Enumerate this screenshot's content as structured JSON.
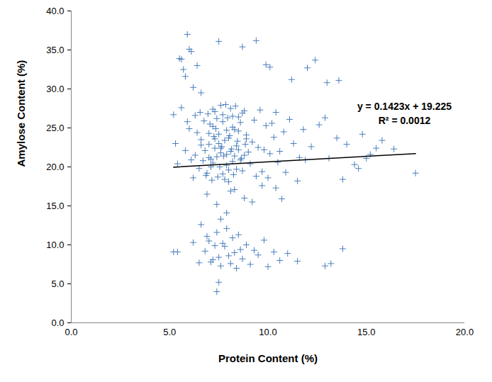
{
  "chart_data": {
    "type": "scatter",
    "x_label": "Protein Content (%)",
    "y_label": "Amylose Content (%)",
    "annotations": [
      "y = 0.1423x + 19.225",
      "R² = 0.0012"
    ],
    "xlim": [
      0,
      20
    ],
    "ylim": [
      0,
      40
    ],
    "xticks": [
      {
        "value": 0,
        "label": "0.0"
      },
      {
        "value": 5,
        "label": "5.0"
      },
      {
        "value": 10,
        "label": "10.0"
      },
      {
        "value": 15,
        "label": "15.0"
      },
      {
        "value": 20,
        "label": "20.0"
      }
    ],
    "yticks": [
      {
        "value": 0,
        "label": "0.0"
      },
      {
        "value": 5,
        "label": "5.0"
      },
      {
        "value": 10,
        "label": "10.0"
      },
      {
        "value": 15,
        "label": "15.0"
      },
      {
        "value": 20,
        "label": "20.0"
      },
      {
        "value": 25,
        "label": "25.0"
      },
      {
        "value": 30,
        "label": "30.0"
      },
      {
        "value": 35,
        "label": "35.0"
      },
      {
        "value": 40,
        "label": "40.0"
      }
    ],
    "grid": false,
    "series": [
      {
        "type": "scatter",
        "color": "#4a7ebb",
        "marker": "plus",
        "x": [
          6.8,
          7.0,
          7.2,
          7.4,
          7.6,
          7.8,
          8.0,
          8.2,
          8.4,
          8.6,
          6.9,
          7.1,
          7.3,
          7.5,
          7.7,
          7.9,
          8.1,
          8.3,
          8.5,
          8.7,
          7.05,
          7.25,
          7.45,
          7.65,
          7.85,
          8.05,
          8.25,
          8.45,
          8.65,
          8.85,
          6.6,
          6.7,
          6.95,
          7.15,
          7.35,
          7.55,
          7.75,
          7.95,
          8.15,
          8.35,
          8.9,
          9.1,
          9.3,
          9.5,
          9.7,
          9.9,
          10.1,
          10.3,
          10.5,
          10.8,
          6.3,
          6.4,
          6.5,
          6.55,
          6.6,
          6.75,
          6.85,
          7.0,
          7.2,
          7.4,
          7.6,
          7.8,
          8.0,
          8.2,
          8.4,
          8.6,
          8.8,
          9.0,
          9.2,
          9.4,
          7.1,
          7.3,
          7.5,
          7.7,
          7.9,
          8.1,
          8.3,
          8.5,
          8.7,
          8.9,
          9.6,
          9.8,
          10.0,
          10.2,
          10.4,
          10.6,
          10.9,
          11.1,
          11.3,
          11.6,
          5.6,
          5.8,
          5.9,
          6.0,
          6.1,
          6.2,
          5.5,
          5.7,
          6.4,
          6.6,
          7.5,
          8.7,
          9.4,
          9.9,
          10.1,
          11.2,
          12.0,
          12.4,
          13.0,
          13.6,
          11.8,
          12.2,
          12.6,
          13.1,
          13.5,
          14.0,
          14.4,
          14.8,
          15.2,
          15.5,
          15.8,
          16.4,
          17.5,
          12.9,
          11.5,
          13.8,
          14.6,
          10.7,
          11.9,
          15.0,
          6.9,
          7.4,
          7.9,
          8.3,
          8.8,
          9.2,
          9.7,
          7.6,
          8.1,
          10.4,
          5.2,
          5.3,
          5.6,
          5.8,
          6.0,
          6.2,
          5.4,
          5.9,
          6.1,
          6.3,
          6.8,
          7.0,
          7.2,
          7.4,
          7.6,
          7.8,
          8.0,
          8.2,
          8.4,
          8.6,
          6.9,
          7.1,
          7.3,
          7.5,
          7.7,
          7.9,
          8.1,
          8.3,
          8.5,
          8.7,
          8.9,
          9.1,
          9.3,
          9.5,
          9.8,
          10.0,
          10.3,
          10.6,
          11.0,
          11.5,
          5.2,
          5.4,
          6.2,
          6.5,
          7.4,
          7.5,
          12.9,
          13.2,
          13.8,
          6.6,
          7.0,
          7.3,
          7.6,
          7.9,
          8.2,
          8.5,
          8.8,
          7.2,
          7.7,
          8.0
        ],
        "values": [
          22.1,
          24.3,
          20.5,
          26.2,
          21.8,
          23.4,
          19.6,
          25.1,
          22.7,
          20.9,
          19.2,
          21.0,
          27.1,
          23.0,
          25.8,
          20.2,
          27.5,
          21.4,
          24.6,
          26.9,
          25.5,
          23.9,
          18.7,
          22.6,
          28.0,
          24.0,
          19.0,
          23.3,
          21.1,
          22.9,
          23.5,
          20.8,
          26.8,
          18.3,
          24.9,
          20.0,
          21.4,
          26.3,
          22.3,
          27.8,
          24.1,
          20.4,
          26.0,
          22.5,
          19.4,
          25.3,
          21.7,
          23.8,
          20.6,
          24.5,
          21.5,
          24.4,
          19.8,
          27.0,
          22.8,
          25.9,
          18.9,
          22.9,
          27.4,
          21.3,
          27.9,
          18.4,
          23.7,
          26.5,
          19.7,
          25.7,
          27.2,
          21.9,
          23.2,
          18.8,
          20.0,
          22.4,
          24.2,
          19.1,
          21.6,
          22.0,
          24.8,
          26.4,
          19.5,
          23.6,
          27.3,
          22.2,
          18.6,
          25.6,
          27.0,
          22.0,
          19.3,
          26.1,
          23.0,
          21.2,
          33.8,
          31.6,
          37.0,
          35.1,
          34.8,
          30.2,
          33.9,
          32.5,
          33.0,
          29.5,
          36.1,
          35.4,
          36.2,
          33.1,
          32.8,
          31.2,
          32.7,
          33.7,
          30.8,
          31.1,
          24.8,
          22.6,
          25.4,
          21.1,
          23.7,
          22.9,
          20.3,
          24.2,
          21.6,
          22.4,
          23.4,
          22.3,
          19.2,
          26.3,
          18.2,
          18.4,
          19.8,
          15.9,
          20.9,
          21.1,
          16.5,
          15.2,
          14.1,
          17.1,
          16.0,
          15.5,
          17.6,
          13.3,
          16.9,
          17.3,
          26.7,
          23.0,
          27.6,
          22.1,
          24.9,
          18.6,
          20.4,
          25.8,
          20.9,
          26.6,
          9.2,
          10.5,
          8.1,
          11.6,
          7.3,
          9.8,
          8.6,
          10.9,
          7.0,
          9.4,
          11.1,
          7.8,
          9.9,
          8.4,
          10.2,
          12.1,
          7.6,
          9.0,
          11.3,
          8.2,
          10.0,
          7.5,
          9.3,
          8.7,
          10.6,
          7.2,
          9.1,
          8.0,
          8.9,
          7.9,
          9.1,
          9.1,
          10.3,
          7.7,
          4.0,
          5.2,
          7.3,
          7.6,
          9.5,
          12.6,
          21.2,
          23.6,
          22.4,
          24.7,
          20.7,
          22.2,
          21.5,
          25.2,
          26.7,
          18.1
        ]
      },
      {
        "type": "line",
        "color": "#000000",
        "line_style": "solid",
        "x": [
          5.2,
          17.5
        ],
        "values": [
          19.965,
          21.715
        ]
      }
    ]
  }
}
